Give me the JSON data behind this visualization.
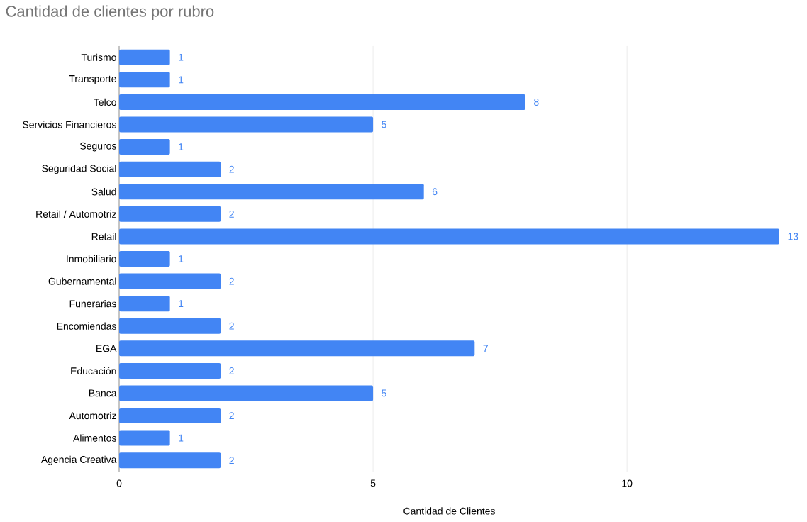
{
  "chart_data": {
    "type": "bar",
    "orientation": "horizontal",
    "title": "Cantidad de clientes por rubro",
    "xlabel": "Cantidad de Clientes",
    "categories": [
      "Turismo",
      "Transporte",
      "Telco",
      "Servicios Financieros",
      "Seguros",
      "Seguridad Social",
      "Salud",
      "Retail / Automotriz",
      "Retail",
      "Inmobiliario",
      "Gubernamental",
      "Funerarias",
      "Encomiendas",
      "EGA",
      "Educación",
      "Banca",
      "Automotriz",
      "Alimentos",
      "Agencia Creativa"
    ],
    "values": [
      1,
      1,
      8,
      5,
      1,
      2,
      6,
      2,
      13,
      1,
      2,
      1,
      2,
      7,
      2,
      5,
      2,
      1,
      2
    ],
    "color": "#4285f4",
    "xlim": [
      0,
      13
    ],
    "xticks": [
      0,
      5,
      10
    ],
    "grid": "x",
    "data_labels": true
  }
}
